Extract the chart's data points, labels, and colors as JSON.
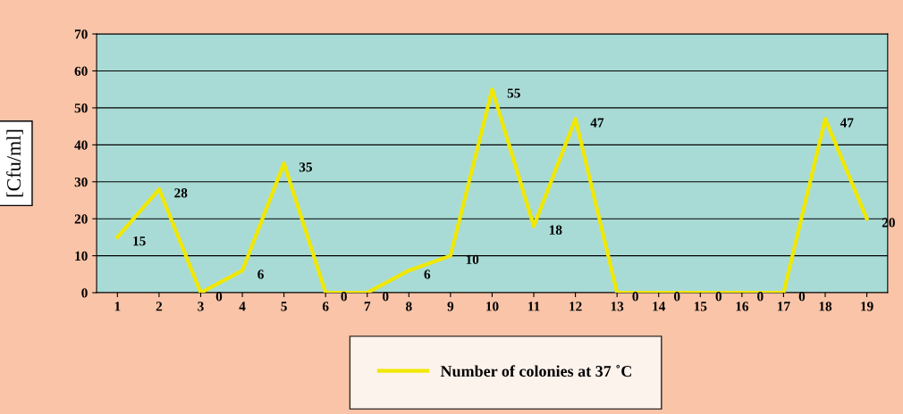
{
  "chart_data": {
    "type": "line",
    "ylabel": "[Cfu/ml]",
    "categories": [
      "1",
      "2",
      "3",
      "4",
      "5",
      "6",
      "7",
      "8",
      "9",
      "10",
      "11",
      "12",
      "13",
      "14",
      "15",
      "16",
      "17",
      "18",
      "19"
    ],
    "series": [
      {
        "name": "Number of colonies at 37 ˚C",
        "color": "#f0e800",
        "values": [
          15,
          28,
          0,
          6,
          35,
          0,
          0,
          6,
          10,
          55,
          18,
          47,
          0,
          0,
          0,
          0,
          0,
          47,
          20
        ]
      }
    ],
    "ylim": [
      0,
      70
    ],
    "yticks": [
      0,
      10,
      20,
      30,
      40,
      50,
      60,
      70
    ],
    "grid": "y",
    "legend": "bottom",
    "data_labels": true
  }
}
